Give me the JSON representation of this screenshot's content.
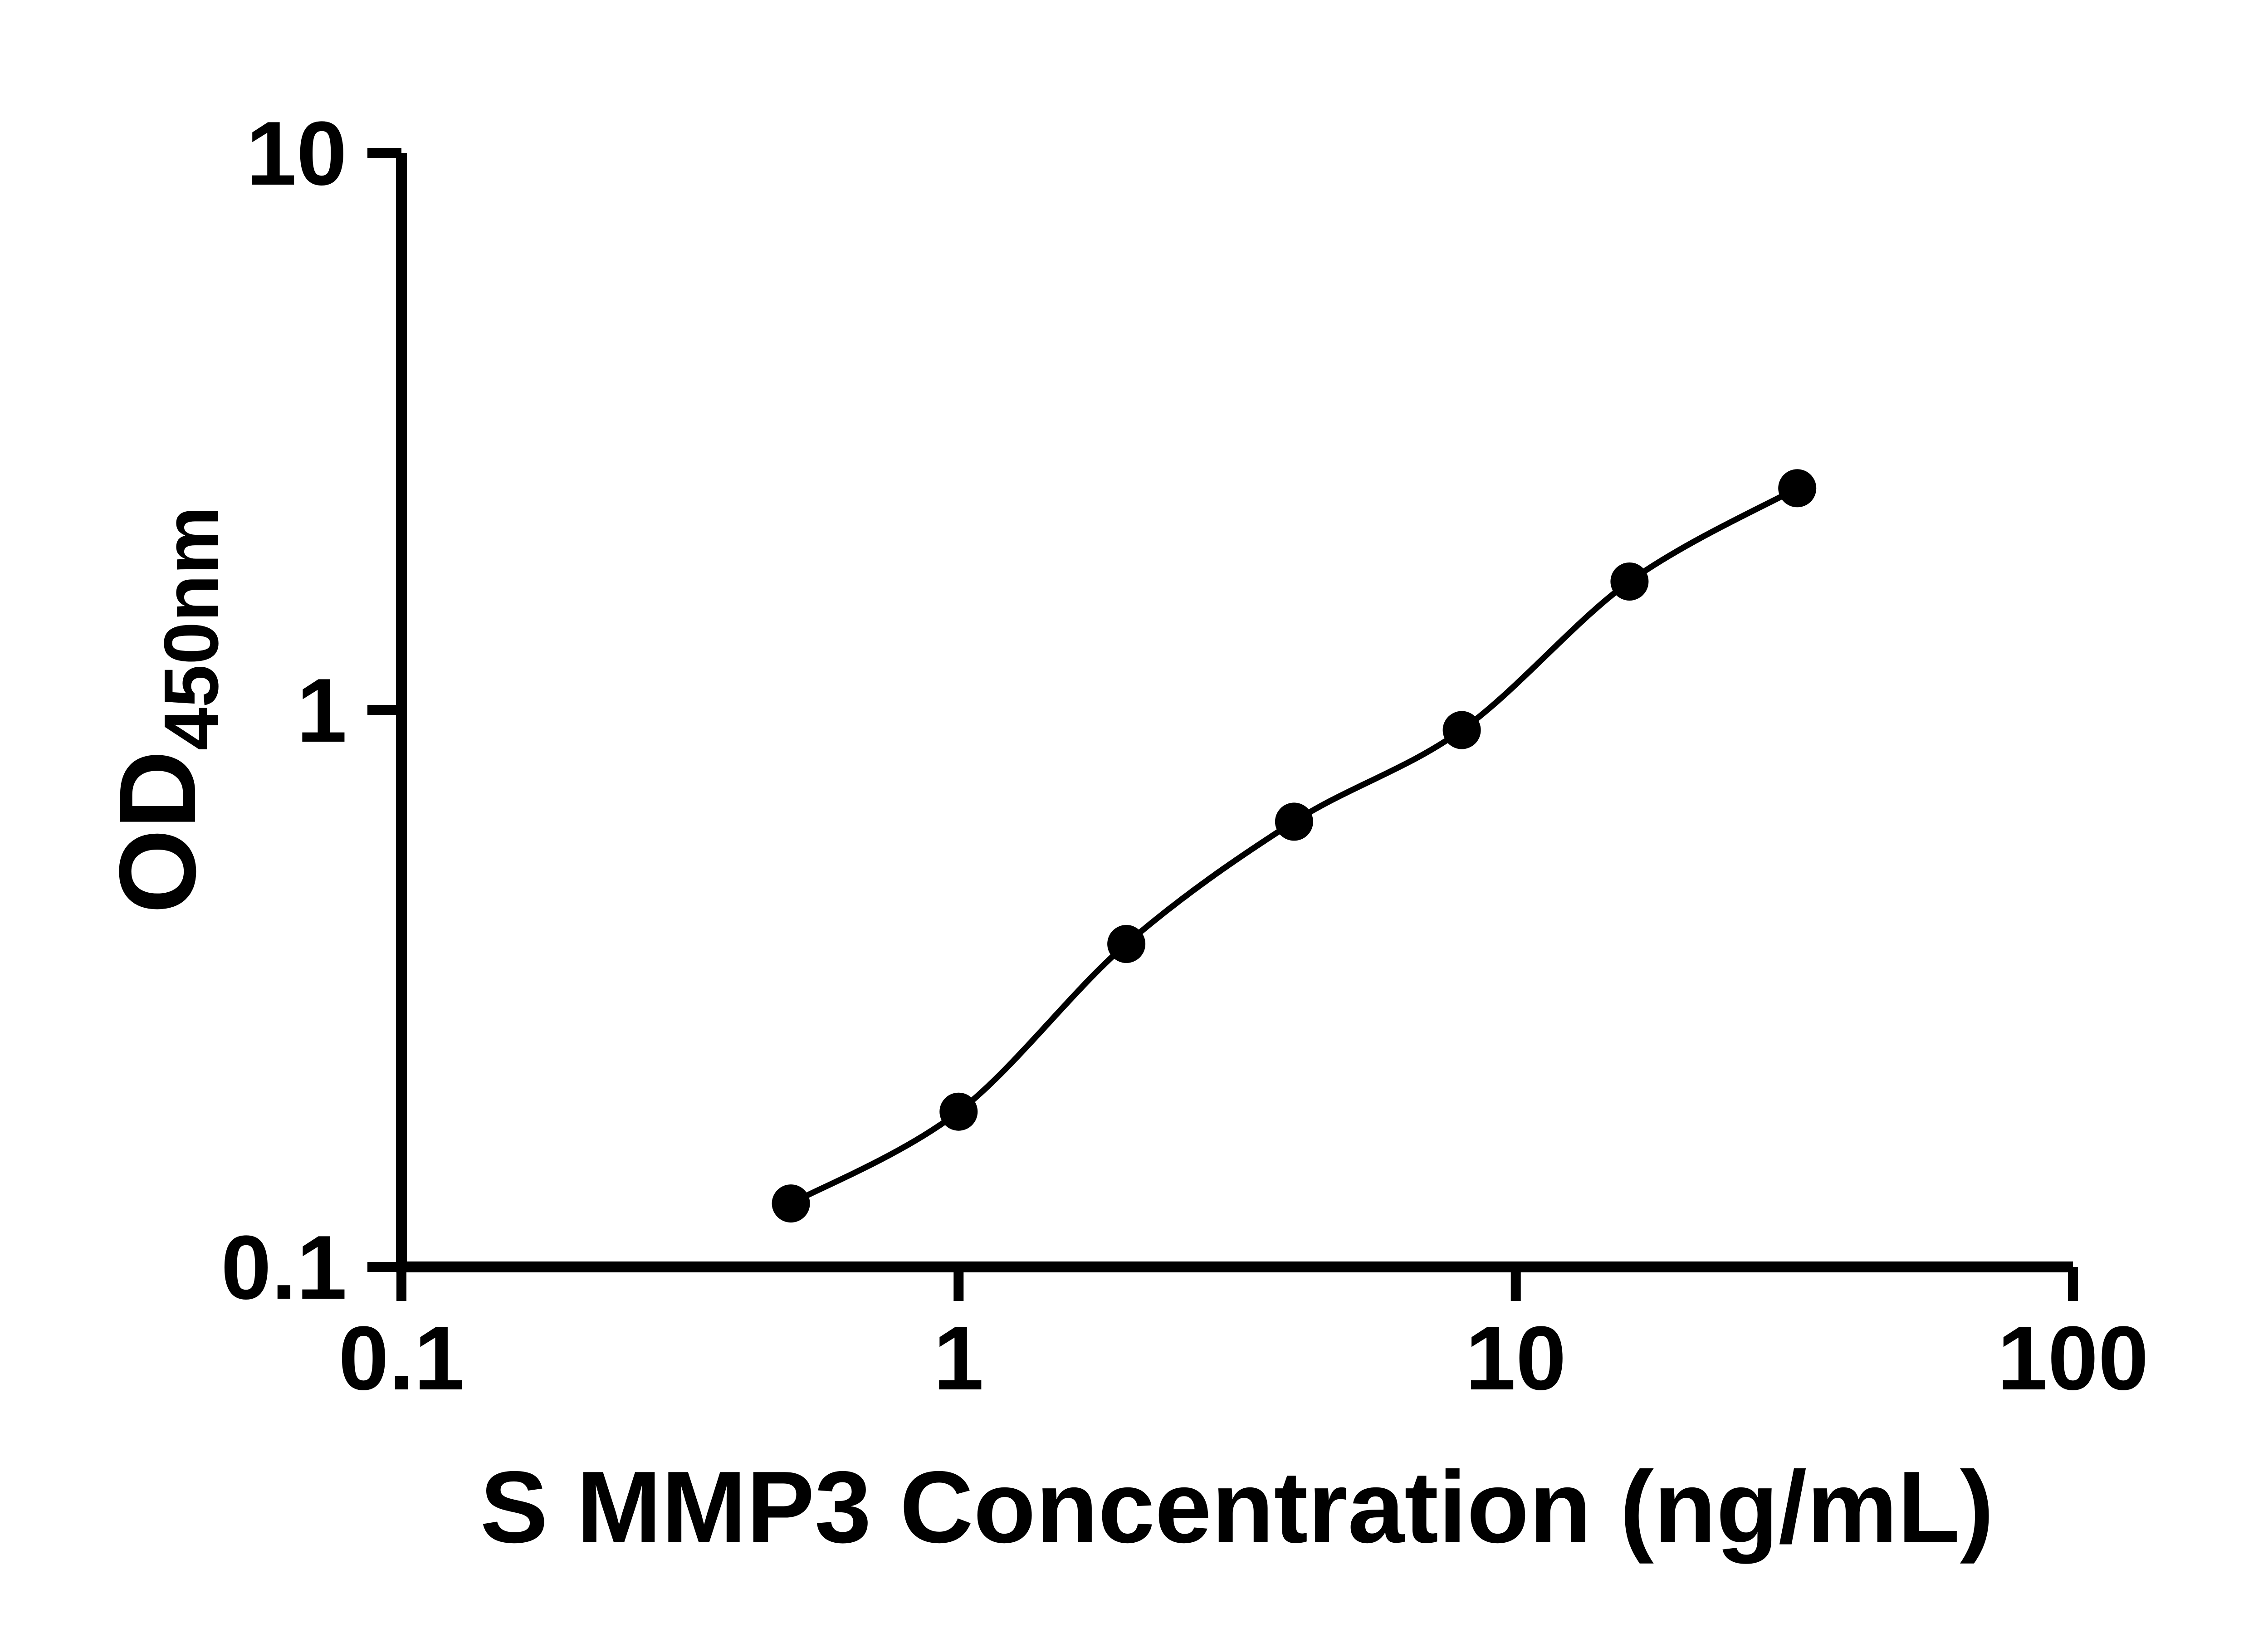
{
  "page": {
    "background": "#ffffff"
  },
  "colors": {
    "axis": "#000000",
    "curve": "#000000",
    "marker": "#000000",
    "text": "#000000"
  },
  "chart_data": {
    "type": "scatter",
    "subtype": "elisa-standard-curve",
    "title": "",
    "xlabel": "S MMP3 Concentration (ng/mL)",
    "ylabel": "OD",
    "ylabel_subscript": "450nm",
    "x_scale": "log10",
    "y_scale": "log10",
    "xlim": [
      0.1,
      100
    ],
    "ylim": [
      0.1,
      10
    ],
    "x_tick_values": [
      0.1,
      1,
      10,
      100
    ],
    "x_tick_labels": [
      "0.1",
      "1",
      "10",
      "100"
    ],
    "y_tick_values": [
      0.1,
      1,
      10
    ],
    "y_tick_labels": [
      "0.1",
      "1",
      "10"
    ],
    "grid": false,
    "legend": false,
    "fit_line": true,
    "points": [
      {
        "x": 0.5,
        "y": 0.13
      },
      {
        "x": 1,
        "y": 0.19
      },
      {
        "x": 2,
        "y": 0.38
      },
      {
        "x": 4,
        "y": 0.63
      },
      {
        "x": 8,
        "y": 0.92
      },
      {
        "x": 16,
        "y": 1.7
      },
      {
        "x": 32,
        "y": 2.5
      }
    ]
  }
}
